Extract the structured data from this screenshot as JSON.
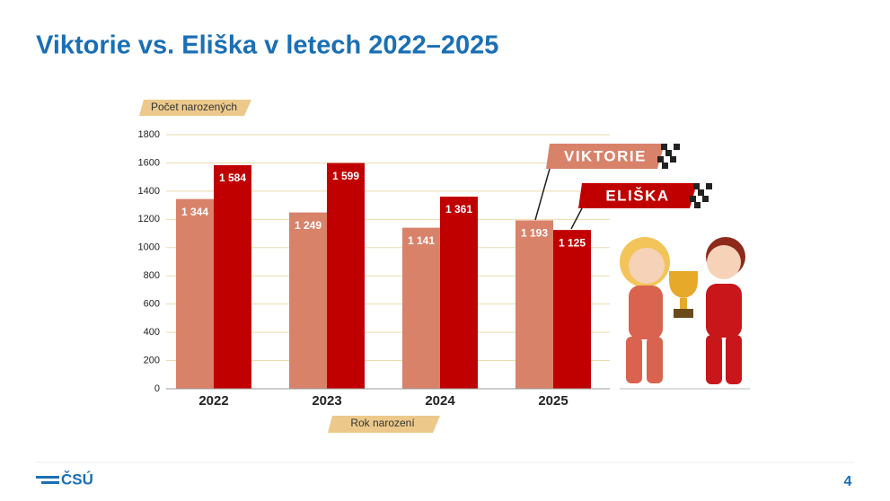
{
  "chart_data": {
    "type": "bar",
    "title": "Viktorie vs. Eliška v letech 2022–2025",
    "y_label": "Počet narozených",
    "x_label": "Rok narození",
    "categories": [
      "2022",
      "2023",
      "2024",
      "2025"
    ],
    "series": [
      {
        "name": "VIKTORIE",
        "color": "#d9826a",
        "values": [
          1344,
          1249,
          1141,
          1193
        ],
        "value_labels": [
          "1 344",
          "1 249",
          "1 141",
          "1 193"
        ]
      },
      {
        "name": "ELIŠKA",
        "color": "#c00000",
        "values": [
          1584,
          1599,
          1361,
          1125
        ],
        "value_labels": [
          "1 584",
          "1 599",
          "1 361",
          "1 125"
        ]
      }
    ],
    "ylim": [
      0,
      1800
    ],
    "yticks": [
      0,
      200,
      400,
      600,
      800,
      1000,
      1200,
      1400,
      1600,
      1800
    ],
    "grid": true
  },
  "footer": {
    "logo": "ČSÚ",
    "page": "4"
  }
}
